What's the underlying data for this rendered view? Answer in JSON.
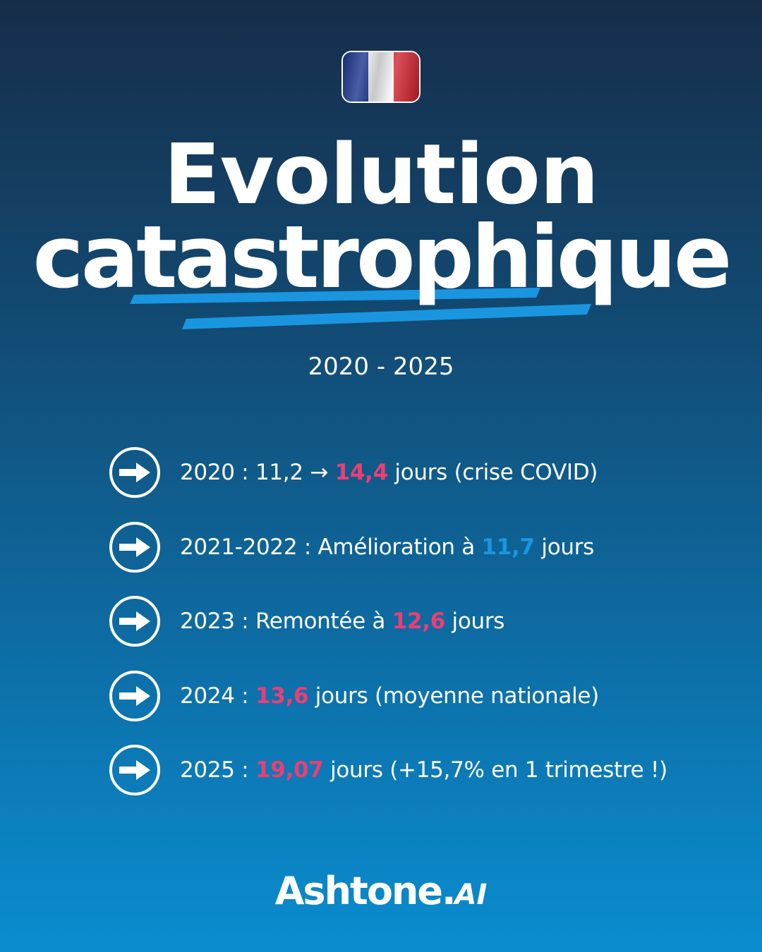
{
  "flag": {
    "name": "france-flag-icon",
    "colors": [
      "#1f3a93",
      "#f4f4f4",
      "#d21f2b"
    ]
  },
  "title": {
    "line1": "Evolution",
    "line2": "catastrophique"
  },
  "period": "2020 - 2025",
  "accent_colors": {
    "pink": "#ee3d74",
    "blue": "#1a96e0",
    "underline": "#1a96e0"
  },
  "items": [
    {
      "icon": "arrow-right-icon",
      "prefix": "2020 : 11,2 → ",
      "value": "14,4",
      "value_color": "pink",
      "suffix": " jours (crise COVID)"
    },
    {
      "icon": "arrow-right-icon",
      "prefix": "2021-2022 : Amélioration à ",
      "value": "11,7",
      "value_color": "blue",
      "suffix": " jours"
    },
    {
      "icon": "arrow-right-icon",
      "prefix": "2023 : Remontée à ",
      "value": "12,6",
      "value_color": "pink",
      "suffix": " jours"
    },
    {
      "icon": "arrow-right-icon",
      "prefix": "2024 : ",
      "value": "13,6",
      "value_color": "pink",
      "suffix": " jours (moyenne nationale)"
    },
    {
      "icon": "arrow-right-icon",
      "prefix": "2025 : ",
      "value": "19,07",
      "value_color": "pink",
      "suffix": " jours (+15,7% en 1 trimestre !)"
    }
  ],
  "logo": {
    "main": "Ashtone.",
    "suffix": "AI"
  }
}
